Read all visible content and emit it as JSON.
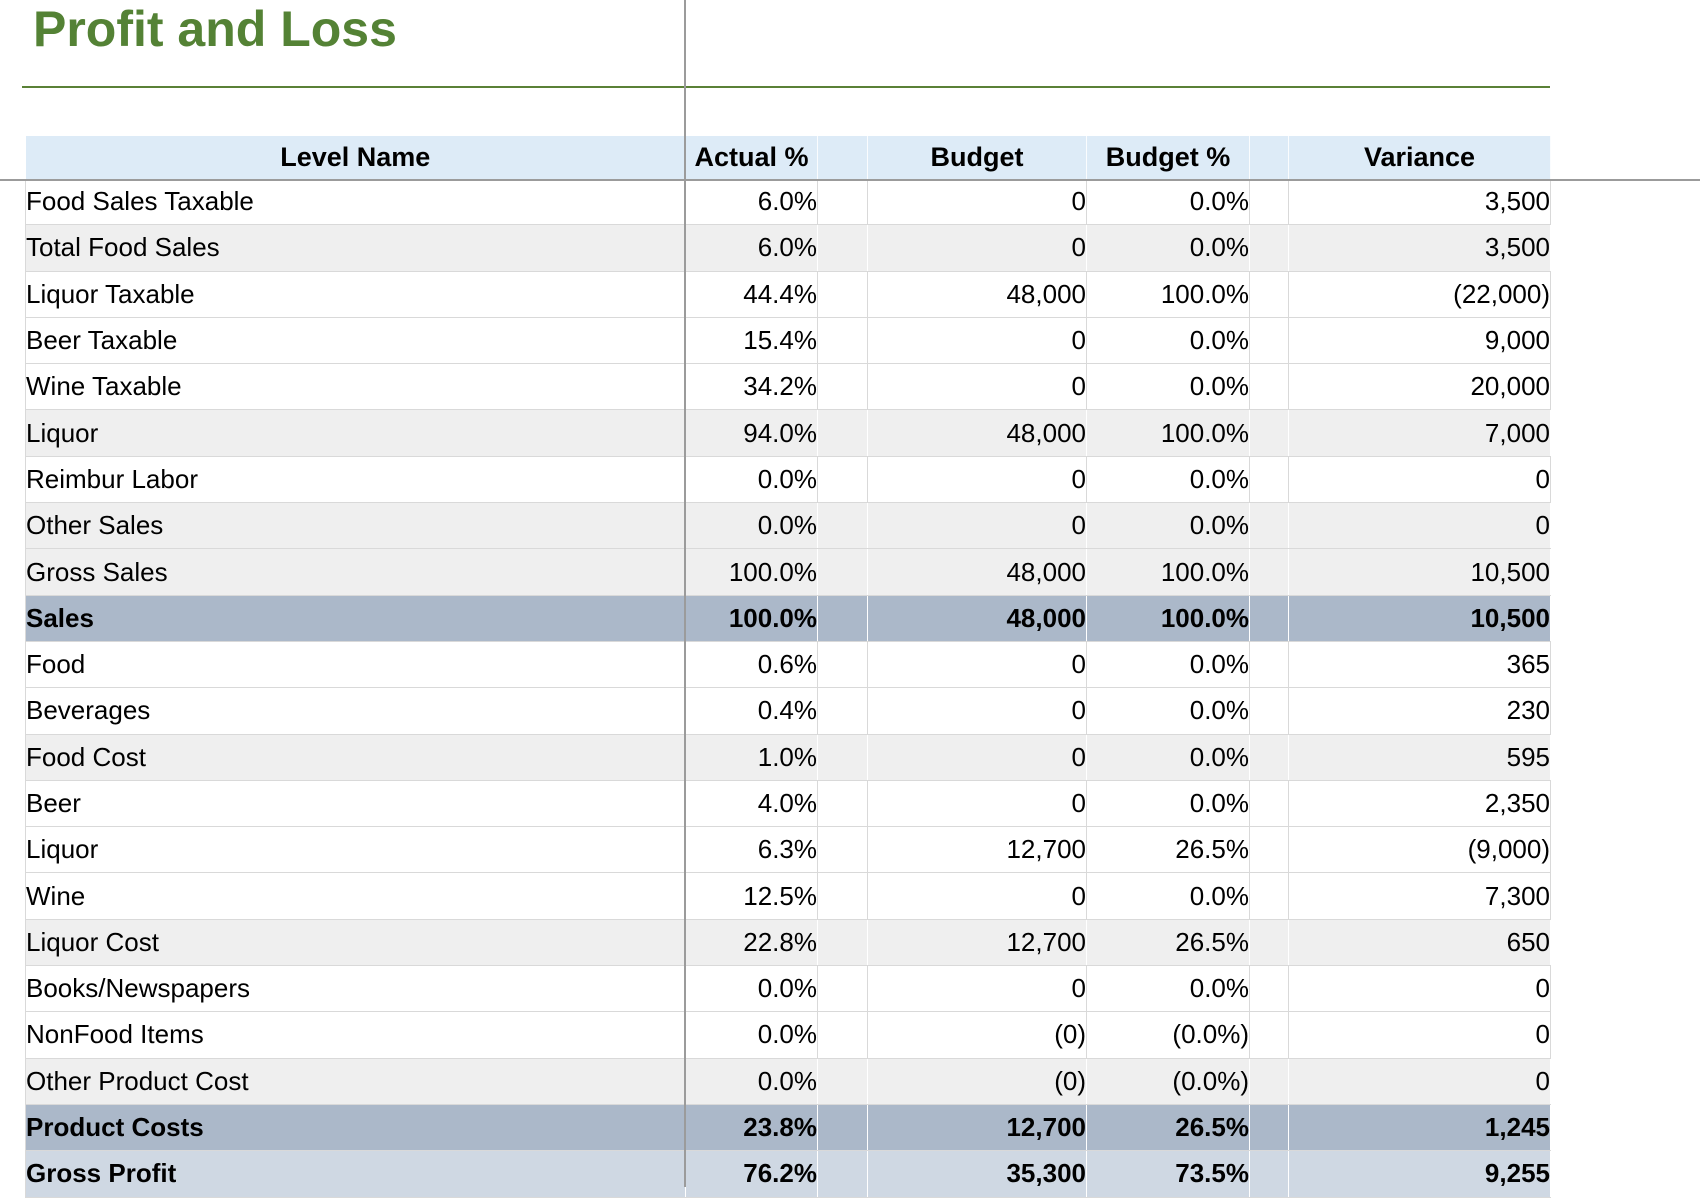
{
  "title": "Profit and Loss",
  "colors": {
    "title_green": "#548235",
    "header_blue": "#DDEBF7",
    "band_gray": "#EFEFEF",
    "band_dark_blue_gray": "#ABB8C9",
    "band_light_blue_gray": "#CFD8E3",
    "pane_divider_gray": "#9b9b9b"
  },
  "table": {
    "headers": {
      "level_name": "Level Name",
      "actual_pct": "Actual %",
      "budget": "Budget",
      "budget_pct": "Budget %",
      "variance": "Variance"
    },
    "rows": [
      {
        "name": "Food Sales Taxable",
        "actual": "6.0%",
        "budget": "0",
        "budget_pct": "0.0%",
        "variance": "3,500",
        "band": "white"
      },
      {
        "name": "Total Food Sales",
        "actual": "6.0%",
        "budget": "0",
        "budget_pct": "0.0%",
        "variance": "3,500",
        "band": "gray"
      },
      {
        "name": "Liquor Taxable",
        "actual": "44.4%",
        "budget": "48,000",
        "budget_pct": "100.0%",
        "variance": "(22,000)",
        "band": "white"
      },
      {
        "name": "Beer Taxable",
        "actual": "15.4%",
        "budget": "0",
        "budget_pct": "0.0%",
        "variance": "9,000",
        "band": "white"
      },
      {
        "name": "Wine Taxable",
        "actual": "34.2%",
        "budget": "0",
        "budget_pct": "0.0%",
        "variance": "20,000",
        "band": "white"
      },
      {
        "name": "Liquor",
        "actual": "94.0%",
        "budget": "48,000",
        "budget_pct": "100.0%",
        "variance": "7,000",
        "band": "gray"
      },
      {
        "name": "Reimbur Labor",
        "actual": "0.0%",
        "budget": "0",
        "budget_pct": "0.0%",
        "variance": "0",
        "band": "white"
      },
      {
        "name": "Other Sales",
        "actual": "0.0%",
        "budget": "0",
        "budget_pct": "0.0%",
        "variance": "0",
        "band": "gray"
      },
      {
        "name": "Gross Sales",
        "actual": "100.0%",
        "budget": "48,000",
        "budget_pct": "100.0%",
        "variance": "10,500",
        "band": "gray"
      },
      {
        "name": "Sales",
        "actual": "100.0%",
        "budget": "48,000",
        "budget_pct": "100.0%",
        "variance": "10,500",
        "band": "dark"
      },
      {
        "name": "Food",
        "actual": "0.6%",
        "budget": "0",
        "budget_pct": "0.0%",
        "variance": "365",
        "band": "white"
      },
      {
        "name": "Beverages",
        "actual": "0.4%",
        "budget": "0",
        "budget_pct": "0.0%",
        "variance": "230",
        "band": "white"
      },
      {
        "name": "Food Cost",
        "actual": "1.0%",
        "budget": "0",
        "budget_pct": "0.0%",
        "variance": "595",
        "band": "gray"
      },
      {
        "name": "Beer",
        "actual": "4.0%",
        "budget": "0",
        "budget_pct": "0.0%",
        "variance": "2,350",
        "band": "white"
      },
      {
        "name": "Liquor",
        "actual": "6.3%",
        "budget": "12,700",
        "budget_pct": "26.5%",
        "variance": "(9,000)",
        "band": "white"
      },
      {
        "name": "Wine",
        "actual": "12.5%",
        "budget": "0",
        "budget_pct": "0.0%",
        "variance": "7,300",
        "band": "white"
      },
      {
        "name": "Liquor Cost",
        "actual": "22.8%",
        "budget": "12,700",
        "budget_pct": "26.5%",
        "variance": "650",
        "band": "gray"
      },
      {
        "name": "Books/Newspapers",
        "actual": "0.0%",
        "budget": "0",
        "budget_pct": "0.0%",
        "variance": "0",
        "band": "white"
      },
      {
        "name": "NonFood Items",
        "actual": "0.0%",
        "budget": "(0)",
        "budget_pct": "(0.0%)",
        "variance": "0",
        "band": "white"
      },
      {
        "name": "Other Product Cost",
        "actual": "0.0%",
        "budget": "(0)",
        "budget_pct": "(0.0%)",
        "variance": "0",
        "band": "gray"
      },
      {
        "name": "Product Costs",
        "actual": "23.8%",
        "budget": "12,700",
        "budget_pct": "26.5%",
        "variance": "1,245",
        "band": "dark"
      },
      {
        "name": "Gross Profit",
        "actual": "76.2%",
        "budget": "35,300",
        "budget_pct": "73.5%",
        "variance": "9,255",
        "band": "light"
      }
    ]
  }
}
